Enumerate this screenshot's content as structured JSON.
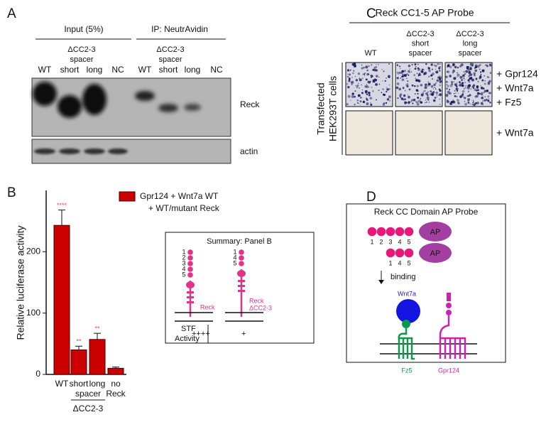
{
  "panel_a": {
    "letter": "A",
    "input_header": "Input (5%)",
    "ip_header": "IP: NeutrAvidin",
    "construct_label": [
      "ΔCC2-3",
      "spacer"
    ],
    "lanes": [
      "WT",
      "short",
      "long",
      "NC",
      "WT",
      "short",
      "long",
      "NC"
    ],
    "blot_labels": [
      "Reck",
      "actin"
    ]
  },
  "chart_data": {
    "type": "bar",
    "letter": "B",
    "ylabel": "Relative luciferase activity",
    "categories": [
      "WT",
      "short",
      "long",
      "no"
    ],
    "spacer_label": "spacer",
    "no_second_line": "Reck",
    "group_label": "ΔCC2-3",
    "series": [
      {
        "name": "Gpr124 + Wnt7a WT",
        "color": "#cc0000",
        "values": [
          243,
          40,
          57,
          10
        ],
        "errors": [
          25,
          6,
          10,
          2
        ],
        "annotations": [
          "****",
          "**",
          "**",
          null
        ]
      }
    ],
    "legend_second_line": "+ WT/mutant Reck",
    "ylim": [
      0,
      300
    ],
    "yticks": [
      0,
      100,
      200
    ]
  },
  "summary": {
    "title": "Summary: Panel B",
    "numbers_full": [
      "1",
      "2",
      "3",
      "4",
      "5"
    ],
    "numbers_deleted": [
      "1",
      "4",
      "5"
    ],
    "label_full": "Reck",
    "label_deleted": [
      "Reck",
      "ΔCC2-3"
    ],
    "row_label": [
      "STF",
      "Activity"
    ],
    "activity": [
      "++++",
      "+"
    ]
  },
  "panel_c": {
    "letter": "C",
    "title": "Reck CC1-5 AP Probe",
    "columns": [
      [
        "WT"
      ],
      [
        "ΔCC2-3",
        "short",
        "spacer"
      ],
      [
        "ΔCC2-3",
        "long",
        "spacer"
      ]
    ],
    "row_axis_label": [
      "Transfected",
      "HEK293T cells"
    ],
    "rows": [
      [
        "+ Gpr124",
        "+ Wnt7a",
        "+ Fz5"
      ],
      [
        "+ Wnt7a"
      ]
    ]
  },
  "panel_d": {
    "letter": "D",
    "title": "Reck CC Domain AP Probe",
    "ap": "AP",
    "numbers_full": [
      "1",
      "2",
      "3",
      "4",
      "5"
    ],
    "numbers_deleted": [
      "1",
      "4",
      "5"
    ],
    "arrow_label": "binding",
    "wnt": "Wnt7a",
    "fz": "Fz5",
    "gpr": "Gpr124"
  }
}
